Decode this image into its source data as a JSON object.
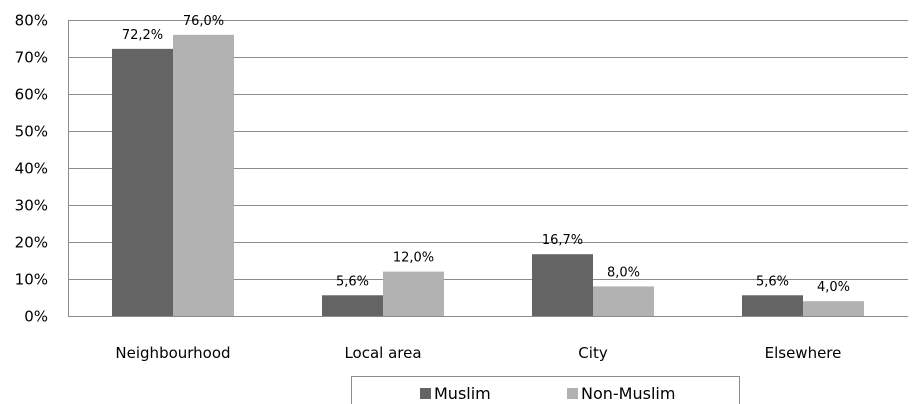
{
  "chart_data": {
    "type": "bar",
    "categories": [
      "Neighbourhood",
      "Local area",
      "City",
      "Elsewhere"
    ],
    "series": [
      {
        "name": "Muslim",
        "values": [
          72.2,
          5.6,
          16.7,
          5.6
        ],
        "labels": [
          "72,2%",
          "5,6%",
          "16,7%",
          "5,6%"
        ],
        "color": "#646464"
      },
      {
        "name": "Non-Muslim",
        "values": [
          76.0,
          12.0,
          8.0,
          4.0
        ],
        "labels": [
          "76,0%",
          "12,0%",
          "8,0%",
          "4,0%"
        ],
        "color": "#b2b2b2"
      }
    ],
    "ylim": [
      0,
      80
    ],
    "yticks": [
      0,
      10,
      20,
      30,
      40,
      50,
      60,
      70,
      80
    ],
    "ytick_labels": [
      "0%",
      "10%",
      "20%",
      "30%",
      "40%",
      "50%",
      "60%",
      "70%",
      "80%"
    ],
    "grid": true,
    "legend_position": "bottom",
    "colors": {
      "gridline": "#8c8c8c",
      "axis": "#8c8c8c",
      "text": "#000000"
    }
  }
}
